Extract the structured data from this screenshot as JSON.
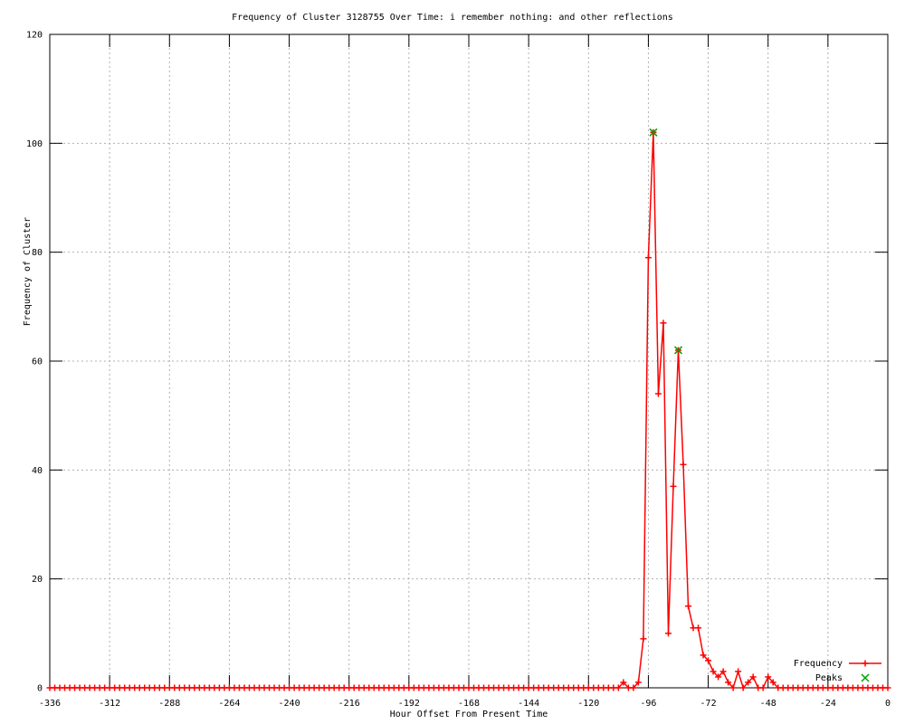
{
  "chart_data": {
    "type": "line",
    "title": "Frequency of Cluster 3128755 Over Time: i remember nothing: and other reflections",
    "xlabel": "Hour Offset From Present Time",
    "ylabel": "Frequency of Cluster",
    "xlim": [
      -336,
      0
    ],
    "ylim": [
      0,
      120
    ],
    "xticks": [
      -336,
      -312,
      -288,
      -264,
      -240,
      -216,
      -192,
      -168,
      -144,
      -120,
      -96,
      -72,
      -48,
      -24,
      0
    ],
    "yticks": [
      0,
      20,
      40,
      60,
      80,
      100,
      120
    ],
    "grid": true,
    "legend_position": "inside-bottom-right",
    "series": [
      {
        "name": "Frequency",
        "style": "linespoints",
        "marker": "plus",
        "color": "#ff0000",
        "x_start": -336,
        "x_step": 2,
        "values": [
          0,
          0,
          0,
          0,
          0,
          0,
          0,
          0,
          0,
          0,
          0,
          0,
          0,
          0,
          0,
          0,
          0,
          0,
          0,
          0,
          0,
          0,
          0,
          0,
          0,
          0,
          0,
          0,
          0,
          0,
          0,
          0,
          0,
          0,
          0,
          0,
          0,
          0,
          0,
          0,
          0,
          0,
          0,
          0,
          0,
          0,
          0,
          0,
          0,
          0,
          0,
          0,
          0,
          0,
          0,
          0,
          0,
          0,
          0,
          0,
          0,
          0,
          0,
          0,
          0,
          0,
          0,
          0,
          0,
          0,
          0,
          0,
          0,
          0,
          0,
          0,
          0,
          0,
          0,
          0,
          0,
          0,
          0,
          0,
          0,
          0,
          0,
          0,
          0,
          0,
          0,
          0,
          0,
          0,
          0,
          0,
          0,
          0,
          0,
          0,
          0,
          0,
          0,
          0,
          0,
          0,
          0,
          0,
          0,
          0,
          0,
          0,
          0,
          0,
          0,
          1,
          0,
          0,
          1,
          9,
          79,
          102,
          54,
          67,
          10,
          37,
          62,
          41,
          15,
          11,
          11,
          6,
          5,
          3,
          2,
          3,
          1,
          0,
          3,
          0,
          1,
          2,
          0,
          0,
          2,
          1,
          0,
          0,
          0,
          0,
          0,
          0,
          0,
          0,
          0,
          0,
          0,
          0,
          0,
          0,
          0,
          0,
          0,
          0,
          0,
          0,
          0,
          0,
          0
        ]
      },
      {
        "name": "Peaks",
        "style": "points",
        "marker": "cross",
        "color": "#00a000",
        "points": [
          [
            -94,
            102
          ],
          [
            -84,
            62
          ]
        ]
      }
    ]
  },
  "colors": {
    "background": "#ffffff",
    "border": "#000000",
    "grid": "#b0b0b0",
    "frequency": "#ff0000",
    "peaks": "#00a000",
    "text": "#000000"
  }
}
